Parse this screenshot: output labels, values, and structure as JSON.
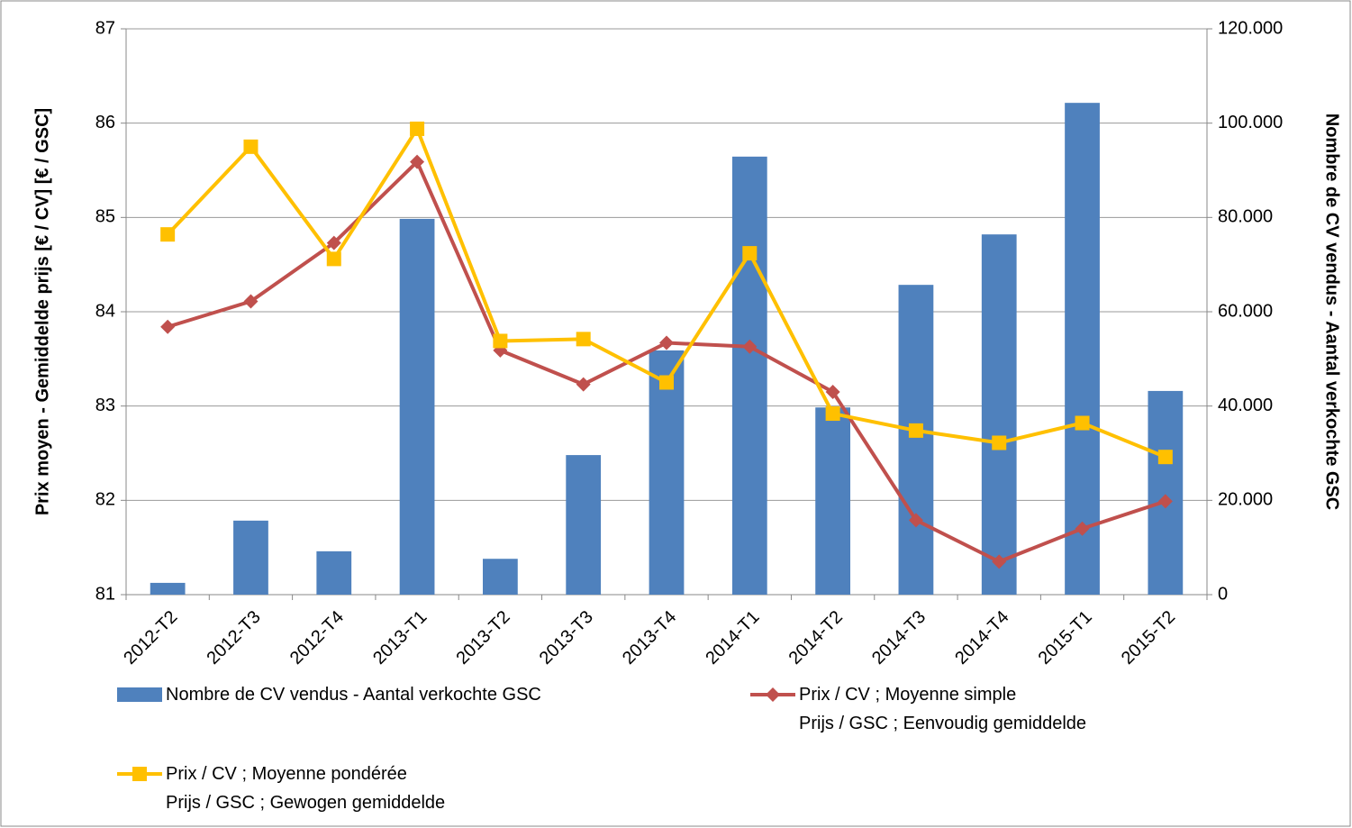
{
  "chart_data": {
    "type": "combo",
    "categories": [
      "2012-T2",
      "2012-T3",
      "2012-T4",
      "2013-T1",
      "2013-T2",
      "2013-T3",
      "2013-T4",
      "2014-T1",
      "2014-T2",
      "2014-T3",
      "2014-T4",
      "2015-T1",
      "2015-T2"
    ],
    "y_label": "Prix moyen  - Gemiddelde prijs [€ / CV] [€ / GSC]",
    "y2_label": "Nombre de CV vendus - Aantal verkochte GSC",
    "ylim": [
      81,
      87
    ],
    "yticks": [
      81,
      82,
      83,
      84,
      85,
      86,
      87
    ],
    "y2lim": [
      0,
      120000
    ],
    "y2ticks": [
      0,
      {
        "value": 20000,
        "label": "20.000"
      },
      {
        "value": 40000,
        "label": "40.000"
      },
      {
        "value": 60000,
        "label": "60.000"
      },
      {
        "value": 80000,
        "label": "80.000"
      },
      {
        "value": 100000,
        "label": "100.000"
      },
      {
        "value": 120000,
        "label": "120.000"
      }
    ],
    "grid": true,
    "series": [
      {
        "name": "Nombre de CV vendus - Aantal verkochte GSC",
        "type": "bar",
        "axis": "y2",
        "color": "#4f81bd",
        "values": [
          2500,
          15700,
          9200,
          79700,
          7600,
          29600,
          51800,
          92900,
          39700,
          65700,
          76400,
          104300,
          43200
        ]
      },
      {
        "name": "Prix / CV ; Moyenne simple\nPrijs / GSC ; Eenvoudig gemiddelde",
        "type": "line",
        "marker": "diamond",
        "color": "#c0504d",
        "values": [
          83.84,
          84.11,
          84.73,
          85.59,
          83.59,
          83.23,
          83.67,
          83.63,
          83.15,
          81.79,
          81.35,
          81.7,
          81.99
        ]
      },
      {
        "name": "Prix / CV ; Moyenne pondérée\nPrijs / GSC ; Gewogen gemiddelde",
        "type": "line",
        "marker": "square",
        "color": "#ffc000",
        "values": [
          84.82,
          85.75,
          84.56,
          85.94,
          83.69,
          83.71,
          83.25,
          84.62,
          82.92,
          82.74,
          82.61,
          82.82,
          82.46
        ]
      }
    ]
  }
}
